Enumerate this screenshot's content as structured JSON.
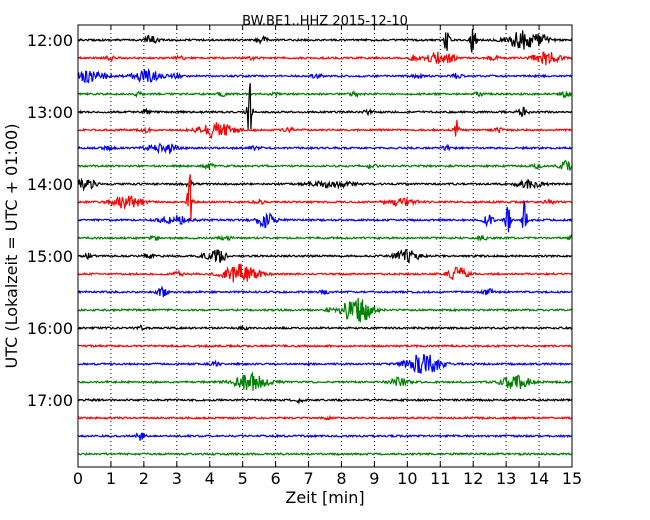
{
  "chart_data": {
    "type": "line",
    "title": "BW.BE1..HHZ 2015-12-10",
    "xlabel": "Zeit  [min]",
    "ylabel": "UTC (Lokalzeit = UTC + 01:00)",
    "xlim": [
      0,
      15
    ],
    "x_ticks": [
      "0",
      "1",
      "2",
      "3",
      "4",
      "5",
      "6",
      "7",
      "8",
      "9",
      "10",
      "11",
      "12",
      "13",
      "14",
      "15"
    ],
    "y_ticks": [
      "12:00",
      "13:00",
      "14:00",
      "15:00",
      "16:00",
      "17:00"
    ],
    "grid": "vertical dotted",
    "colors": [
      "#000000",
      "#ff0000",
      "#0000ff",
      "#008000"
    ],
    "traces": [
      {
        "label": "12:00",
        "color": "#000000",
        "events": [
          [
            2.2,
            4,
            0.15
          ],
          [
            5.6,
            3,
            0.1
          ],
          [
            11.2,
            16,
            0.05
          ],
          [
            12.0,
            22,
            0.05
          ],
          [
            13.55,
            9,
            0.35
          ],
          [
            14.1,
            3,
            0.15
          ]
        ]
      },
      {
        "label": "12:15",
        "color": "#ff0000",
        "events": [
          [
            1.0,
            2,
            0.1
          ],
          [
            3.1,
            2,
            0.1
          ],
          [
            5.3,
            2,
            0.1
          ],
          [
            10.2,
            3,
            0.1
          ],
          [
            10.9,
            6,
            0.2
          ],
          [
            11.3,
            4,
            0.1
          ],
          [
            12.6,
            3,
            0.1
          ],
          [
            14.25,
            8,
            0.25
          ]
        ]
      },
      {
        "label": "12:30",
        "color": "#0000ff",
        "events": [
          [
            0.3,
            6,
            0.25
          ],
          [
            0.85,
            2,
            0.1
          ],
          [
            2.1,
            6,
            0.3
          ],
          [
            3.0,
            2,
            0.1
          ],
          [
            7.25,
            2,
            0.1
          ],
          [
            10.3,
            2,
            0.1
          ],
          [
            11.5,
            3,
            0.1
          ]
        ]
      },
      {
        "label": "12:45",
        "color": "#008000",
        "events": [
          [
            1.8,
            2,
            0.1
          ],
          [
            4.4,
            2,
            0.1
          ],
          [
            6.0,
            2,
            0.1
          ],
          [
            8.4,
            2,
            0.1
          ],
          [
            12.2,
            2,
            0.1
          ],
          [
            14.8,
            3,
            0.1
          ]
        ]
      },
      {
        "label": "13:00",
        "color": "#000000",
        "events": [
          [
            2.1,
            2,
            0.1
          ],
          [
            5.2,
            34,
            0.05
          ],
          [
            8.8,
            2,
            0.1
          ],
          [
            13.5,
            4,
            0.1
          ]
        ]
      },
      {
        "label": "13:15",
        "color": "#ff0000",
        "events": [
          [
            2.05,
            3,
            0.1
          ],
          [
            4.2,
            8,
            0.35
          ],
          [
            6.4,
            2,
            0.1
          ],
          [
            11.5,
            10,
            0.05
          ],
          [
            12.8,
            2,
            0.1
          ]
        ]
      },
      {
        "label": "13:30",
        "color": "#0000ff",
        "events": [
          [
            0.9,
            2,
            0.1
          ],
          [
            2.5,
            4,
            0.3
          ],
          [
            2.75,
            6,
            0.05
          ],
          [
            5.4,
            2,
            0.1
          ],
          [
            11.2,
            2,
            0.1
          ]
        ]
      },
      {
        "label": "13:45",
        "color": "#008000",
        "events": [
          [
            3.95,
            3,
            0.1
          ],
          [
            8.9,
            2,
            0.1
          ],
          [
            13.9,
            2,
            0.1
          ],
          [
            14.85,
            5,
            0.15
          ]
        ]
      },
      {
        "label": "14:00",
        "color": "#000000",
        "events": [
          [
            0.2,
            5,
            0.25
          ],
          [
            3.4,
            2,
            0.1
          ],
          [
            7.7,
            3,
            0.45
          ],
          [
            13.7,
            4,
            0.3
          ]
        ]
      },
      {
        "label": "14:15",
        "color": "#ff0000",
        "events": [
          [
            1.5,
            7,
            0.3
          ],
          [
            3.4,
            30,
            0.05
          ],
          [
            5.5,
            2,
            0.1
          ],
          [
            9.8,
            4,
            0.3
          ],
          [
            14.3,
            2,
            0.1
          ]
        ]
      },
      {
        "label": "14:30",
        "color": "#0000ff",
        "events": [
          [
            2.95,
            4,
            0.3
          ],
          [
            5.7,
            7,
            0.2
          ],
          [
            12.45,
            5,
            0.1
          ],
          [
            13.05,
            16,
            0.05
          ],
          [
            13.55,
            20,
            0.05
          ]
        ]
      },
      {
        "label": "14:45",
        "color": "#008000",
        "events": [
          [
            2.35,
            2,
            0.1
          ],
          [
            4.5,
            2,
            0.1
          ],
          [
            12.3,
            2,
            0.1
          ],
          [
            15.0,
            5,
            0.05
          ]
        ]
      },
      {
        "label": "15:00",
        "color": "#000000",
        "events": [
          [
            0.3,
            3,
            0.1
          ],
          [
            2.15,
            2,
            0.1
          ],
          [
            4.2,
            6,
            0.25
          ],
          [
            10.0,
            6,
            0.25
          ]
        ]
      },
      {
        "label": "15:15",
        "color": "#ff0000",
        "events": [
          [
            3.05,
            2,
            0.1
          ],
          [
            4.95,
            10,
            0.35
          ],
          [
            11.55,
            7,
            0.2
          ]
        ]
      },
      {
        "label": "15:30",
        "color": "#0000ff",
        "events": [
          [
            2.55,
            5,
            0.1
          ],
          [
            7.45,
            2,
            0.1
          ],
          [
            12.45,
            3,
            0.1
          ]
        ]
      },
      {
        "label": "15:45",
        "color": "#008000",
        "events": [
          [
            7.6,
            2,
            0.1
          ],
          [
            8.35,
            9,
            0.25
          ],
          [
            8.65,
            8,
            0.25
          ]
        ]
      },
      {
        "label": "16:00",
        "color": "#000000",
        "events": [
          [
            1.9,
            2,
            0.1
          ],
          [
            5.0,
            2,
            0.1
          ]
        ]
      },
      {
        "label": "16:15",
        "color": "#ff0000",
        "events": []
      },
      {
        "label": "16:30",
        "color": "#0000ff",
        "events": [
          [
            4.15,
            2,
            0.1
          ],
          [
            10.5,
            11,
            0.35
          ]
        ]
      },
      {
        "label": "16:45",
        "color": "#008000",
        "events": [
          [
            5.25,
            8,
            0.35
          ],
          [
            9.75,
            4,
            0.2
          ],
          [
            13.3,
            7,
            0.3
          ]
        ]
      },
      {
        "label": "17:00",
        "color": "#000000",
        "events": [
          [
            6.7,
            2,
            0.1
          ]
        ]
      },
      {
        "label": "17:15",
        "color": "#ff0000",
        "events": [
          [
            7.6,
            3,
            0.05
          ]
        ]
      },
      {
        "label": "17:30",
        "color": "#0000ff",
        "events": [
          [
            1.9,
            4,
            0.1
          ]
        ]
      },
      {
        "label": "17:45",
        "color": "#008000",
        "events": []
      }
    ]
  }
}
